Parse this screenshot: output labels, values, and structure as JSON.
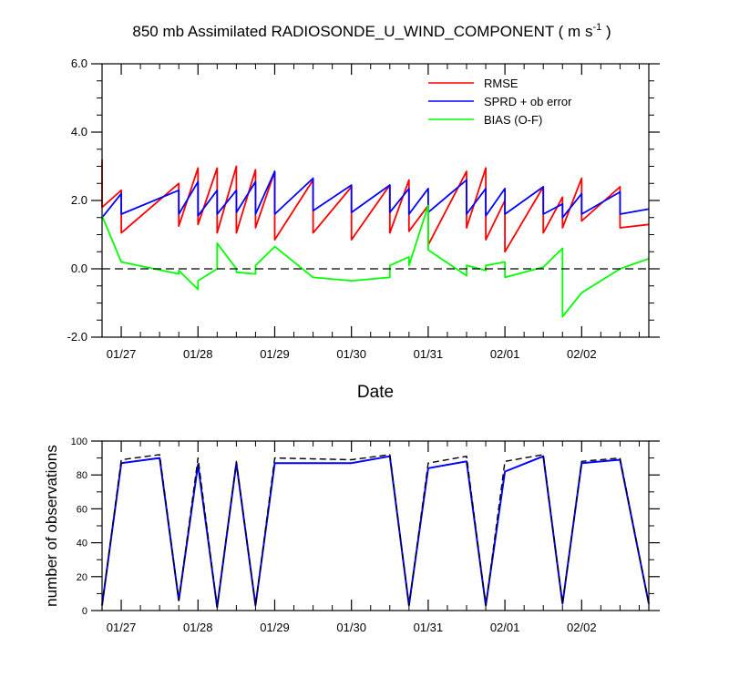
{
  "colors": {
    "rmse": "#ff0000",
    "sprd": "#0000ff",
    "bias": "#00ff00",
    "obs_used": "#0000ff",
    "obs_possible": "#000000"
  },
  "chart_data": [
    {
      "type": "line",
      "title": "850 mb Assimilated RADIOSONDE_U_WIND_COMPONENT ( m s-1 )",
      "title_main": "850 mb Assimilated RADIOSONDE_U_WIND_COMPONENT ( m s",
      "title_sup": "-1",
      "title_end": " )",
      "xlabel": "Date",
      "ylabel": "",
      "xlim": [
        "01/26 18:00",
        "02/02 21:00"
      ],
      "ylim": [
        -2.0,
        6.0
      ],
      "x_ticks": [
        "01/27",
        "01/28",
        "01/29",
        "01/30",
        "01/31",
        "02/01",
        "02/02"
      ],
      "y_ticks": [
        "-2.0",
        "0.0",
        "2.0",
        "4.0",
        "6.0"
      ],
      "grid": false,
      "legend_position": "top-right",
      "series": [
        {
          "name": "RMSE",
          "x": [
            "01/26 18:00",
            "01/26 18:00",
            "01/27 00:00",
            "01/27 00:00",
            "01/27 18:00",
            "01/27 18:00",
            "01/28 00:00",
            "01/28 00:00",
            "01/28 06:00",
            "01/28 06:00",
            "01/28 12:00",
            "01/28 12:00",
            "01/28 18:00",
            "01/28 18:00",
            "01/29 00:00",
            "01/29 00:00",
            "01/29 12:00",
            "01/29 12:00",
            "01/30 00:00",
            "01/30 00:00",
            "01/30 12:00",
            "01/30 12:00",
            "01/30 18:00",
            "01/30 18:00",
            "01/31 00:00",
            "01/31 00:00",
            "01/31 12:00",
            "01/31 12:00",
            "01/31 18:00",
            "01/31 18:00",
            "02/01 00:00",
            "02/01 00:00",
            "02/01 12:00",
            "02/01 12:00",
            "02/01 18:00",
            "02/01 18:00",
            "02/02 00:00",
            "02/02 00:00",
            "02/02 12:00",
            "02/02 12:00",
            "02/02 21:00"
          ],
          "values": [
            3.2,
            1.8,
            2.3,
            1.05,
            2.5,
            1.25,
            2.95,
            1.3,
            2.95,
            1.05,
            3.0,
            1.05,
            2.9,
            1.2,
            2.85,
            0.85,
            2.6,
            1.05,
            2.4,
            0.85,
            2.45,
            1.05,
            2.6,
            1.1,
            1.85,
            0.7,
            2.85,
            1.2,
            2.95,
            0.85,
            2.0,
            0.5,
            2.4,
            1.05,
            2.1,
            1.2,
            2.65,
            1.4,
            2.4,
            1.2,
            1.3
          ]
        },
        {
          "name": "SPRD + ob error",
          "x": [
            "01/26 18:00",
            "01/27 00:00",
            "01/27 00:00",
            "01/27 18:00",
            "01/27 18:00",
            "01/28 00:00",
            "01/28 00:00",
            "01/28 06:00",
            "01/28 06:00",
            "01/28 12:00",
            "01/28 12:00",
            "01/28 18:00",
            "01/28 18:00",
            "01/29 00:00",
            "01/29 00:00",
            "01/29 12:00",
            "01/29 12:00",
            "01/30 00:00",
            "01/30 00:00",
            "01/30 12:00",
            "01/30 12:00",
            "01/30 18:00",
            "01/30 18:00",
            "01/31 00:00",
            "01/31 00:00",
            "01/31 12:00",
            "01/31 12:00",
            "01/31 18:00",
            "01/31 18:00",
            "02/01 00:00",
            "02/01 00:00",
            "02/01 12:00",
            "02/01 12:00",
            "02/01 18:00",
            "02/01 18:00",
            "02/02 00:00",
            "02/02 00:00",
            "02/02 12:00",
            "02/02 12:00",
            "02/02 21:00"
          ],
          "values": [
            1.5,
            2.2,
            1.6,
            2.3,
            1.6,
            2.55,
            1.55,
            2.3,
            1.6,
            2.3,
            1.65,
            2.55,
            1.6,
            2.85,
            1.6,
            2.65,
            1.7,
            2.45,
            1.65,
            2.45,
            1.65,
            2.35,
            1.6,
            2.35,
            1.65,
            2.6,
            1.6,
            2.35,
            1.55,
            2.35,
            1.6,
            2.4,
            1.6,
            1.9,
            1.5,
            2.2,
            1.6,
            2.25,
            1.6,
            1.75
          ]
        },
        {
          "name": "BIAS (O-F)",
          "x": [
            "01/26 18:00",
            "01/27 00:00",
            "01/27 18:00",
            "01/27 18:00",
            "01/28 00:00",
            "01/28 00:00",
            "01/28 06:00",
            "01/28 06:00",
            "01/28 12:00",
            "01/28 12:00",
            "01/28 18:00",
            "01/28 18:00",
            "01/29 00:00",
            "01/29 12:00",
            "01/30 00:00",
            "01/30 12:00",
            "01/30 12:00",
            "01/30 18:00",
            "01/30 18:00",
            "01/31 00:00",
            "01/31 00:00",
            "01/31 12:00",
            "01/31 12:00",
            "01/31 18:00",
            "01/31 18:00",
            "02/01 00:00",
            "02/01 00:00",
            "02/01 12:00",
            "02/01 18:00",
            "02/01 18:00",
            "02/02 00:00",
            "02/02 12:00",
            "02/02 21:00"
          ],
          "values": [
            1.55,
            0.2,
            -0.15,
            -0.05,
            -0.6,
            -0.35,
            0.0,
            0.75,
            0.0,
            -0.1,
            -0.15,
            0.1,
            0.65,
            -0.25,
            -0.35,
            -0.25,
            0.1,
            0.35,
            0.1,
            1.85,
            0.55,
            -0.2,
            0.1,
            -0.05,
            0.1,
            0.2,
            -0.25,
            0.05,
            0.6,
            -1.4,
            -0.7,
            0.0,
            0.3
          ]
        }
      ]
    },
    {
      "type": "line",
      "title": "",
      "xlabel": "",
      "ylabel": "number of observations",
      "xlim": [
        "01/26 18:00",
        "02/02 21:00"
      ],
      "ylim": [
        0,
        100
      ],
      "x_ticks": [
        "01/27",
        "01/28",
        "01/29",
        "01/30",
        "01/31",
        "02/01",
        "02/02"
      ],
      "y_ticks": [
        "0",
        "20",
        "40",
        "60",
        "80",
        "100"
      ],
      "grid": false,
      "series": [
        {
          "style": "solid blue",
          "x": [
            "01/26 18:00",
            "01/27 00:00",
            "01/27 12:00",
            "01/27 18:00",
            "01/28 00:00",
            "01/28 06:00",
            "01/28 12:00",
            "01/28 18:00",
            "01/29 00:00",
            "01/30 00:00",
            "01/30 12:00",
            "01/30 18:00",
            "01/31 00:00",
            "01/31 12:00",
            "01/31 18:00",
            "02/01 00:00",
            "02/01 12:00",
            "02/01 18:00",
            "02/02 00:00",
            "02/02 12:00",
            "02/02 21:00"
          ],
          "values": [
            3,
            87,
            90,
            6,
            86,
            2,
            87,
            3,
            87,
            87,
            91,
            3,
            84,
            88,
            3,
            82,
            91,
            4,
            87,
            89,
            4
          ]
        },
        {
          "style": "dashed black",
          "x": [
            "01/26 18:00",
            "01/27 00:00",
            "01/27 12:00",
            "01/27 18:00",
            "01/28 00:00",
            "01/28 06:00",
            "01/28 12:00",
            "01/28 18:00",
            "01/29 00:00",
            "01/30 00:00",
            "01/30 12:00",
            "01/30 18:00",
            "01/31 00:00",
            "01/31 12:00",
            "01/31 18:00",
            "02/01 00:00",
            "02/01 12:00",
            "02/01 18:00",
            "02/02 00:00",
            "02/02 12:00",
            "02/02 21:00"
          ],
          "values": [
            3,
            89,
            92,
            6,
            90,
            2,
            88,
            3,
            90,
            89,
            92,
            3,
            87,
            91,
            3,
            88,
            92,
            4,
            88,
            90,
            4
          ]
        }
      ]
    }
  ]
}
